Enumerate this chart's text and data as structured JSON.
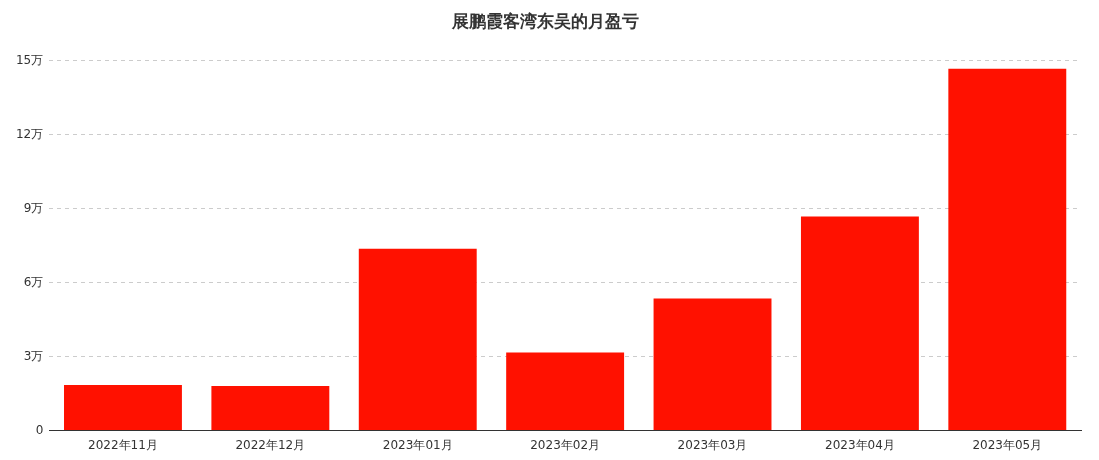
{
  "chart_data": {
    "type": "bar",
    "title": "展鹏霞客湾东吴的月盈亏",
    "categories": [
      "2022年11月",
      "2022年12月",
      "2023年01月",
      "2023年02月",
      "2023年03月",
      "2023年04月",
      "2023年05月"
    ],
    "values": [
      1.85,
      1.81,
      7.37,
      3.16,
      5.35,
      8.68,
      14.66
    ],
    "color": "#ff1100",
    "ylim": [
      0,
      15
    ],
    "yticks": [
      {
        "value": 0,
        "label": "0"
      },
      {
        "value": 3,
        "label": "3万"
      },
      {
        "value": 6,
        "label": "6万"
      },
      {
        "value": 9,
        "label": "9万"
      },
      {
        "value": 12,
        "label": "12万"
      },
      {
        "value": 15,
        "label": "15万"
      }
    ],
    "grid": "y",
    "legend": false
  }
}
